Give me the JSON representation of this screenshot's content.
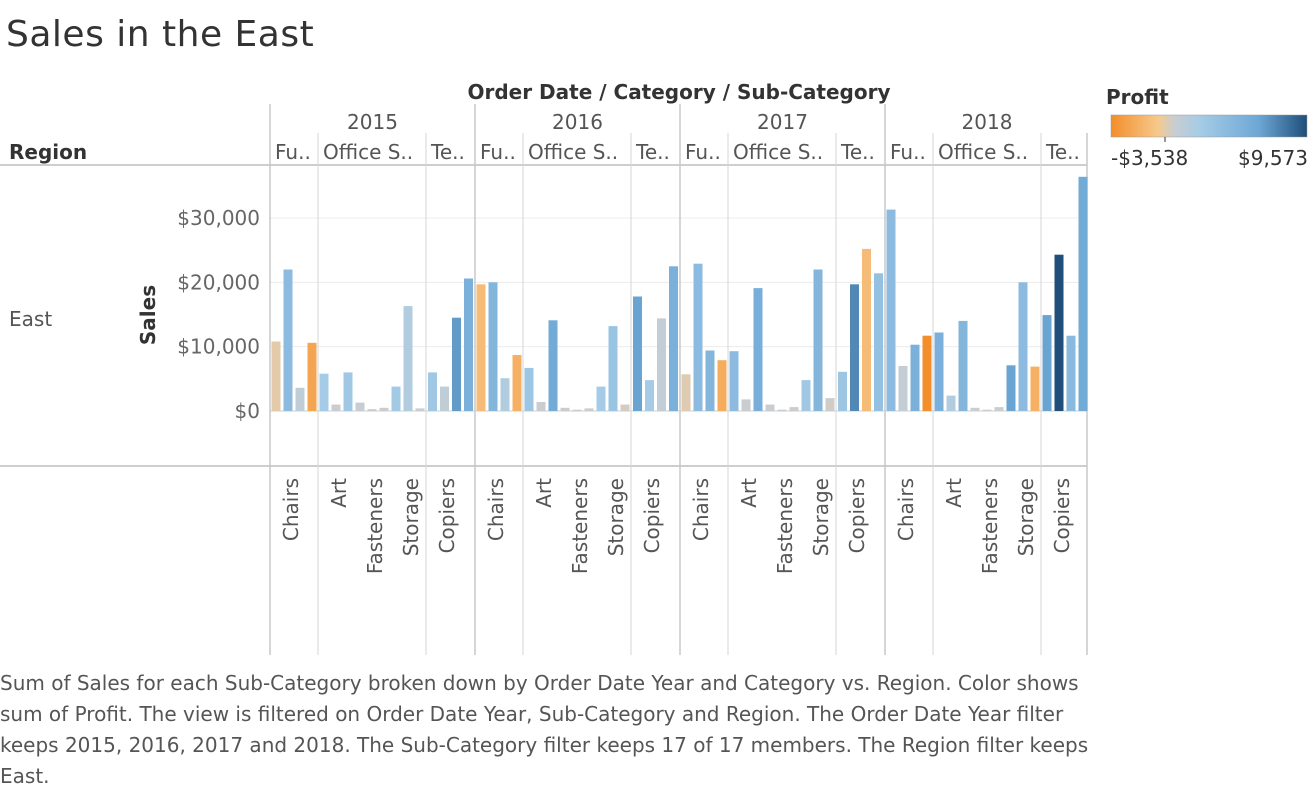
{
  "title": "Sales in the East",
  "header_label": "Order Date / Category / Sub-Category",
  "row_header": "Region",
  "region": "East",
  "colors": {
    "neg": "#f28e2b",
    "neg_light": "#f7c98c",
    "mid": "#c9cdd0",
    "pos_light": "#a6cce6",
    "pos_mid": "#6ea8d6",
    "pos_dark": "#1f4e7a"
  },
  "legend": {
    "title": "Profit",
    "min_label": "-$3,538",
    "max_label": "$9,573",
    "min": -3538,
    "max": 9573
  },
  "caption": "Sum of Sales for each Sub-Category broken down by Order Date Year and Category vs. Region.  Color shows sum of Profit. The view is filtered on Order Date Year, Sub-Category and Region. The Order Date Year filter keeps 2015, 2016, 2017 and 2018. The Sub-Category filter keeps 17 of 17 members. The Region filter keeps East.",
  "chart_data": {
    "type": "bar",
    "title": "Sales in the East",
    "ylabel": "Sales",
    "ylim": [
      -8000,
      38000
    ],
    "yticks": [
      0,
      10000,
      20000,
      30000
    ],
    "ytick_labels": [
      "$0",
      "$10,000",
      "$20,000",
      "$30,000"
    ],
    "years": [
      "2015",
      "2016",
      "2017",
      "2018"
    ],
    "category_labels": [
      "Fu..",
      "Office S..",
      "Te.."
    ],
    "subcategory_axis_labels": [
      [
        "Chairs"
      ],
      [
        "Art",
        "Fasteners",
        "Storage"
      ],
      [
        "Copiers"
      ]
    ],
    "series": [
      {
        "year": "2015",
        "groups": [
          {
            "bars": [
              {
                "sales": 10800,
                "profit": -500
              },
              {
                "sales": 22000,
                "profit": 3000
              },
              {
                "sales": 3600,
                "profit": 400
              },
              {
                "sales": 10600,
                "profit": -2500
              }
            ]
          },
          {
            "bars": [
              {
                "sales": 5800,
                "profit": 1500
              },
              {
                "sales": 1000,
                "profit": 0
              },
              {
                "sales": 6000,
                "profit": 1800
              },
              {
                "sales": 1300,
                "profit": 100
              },
              {
                "sales": 300,
                "profit": 0
              },
              {
                "sales": 500,
                "profit": 0
              },
              {
                "sales": 3800,
                "profit": 1600
              },
              {
                "sales": 16300,
                "profit": 1000
              },
              {
                "sales": 400,
                "profit": 0
              }
            ]
          },
          {
            "bars": [
              {
                "sales": 6000,
                "profit": 1800
              },
              {
                "sales": 3800,
                "profit": 400
              },
              {
                "sales": 14500,
                "profit": 5500
              },
              {
                "sales": 20600,
                "profit": 4000
              }
            ]
          }
        ]
      },
      {
        "year": "2016",
        "groups": [
          {
            "bars": [
              {
                "sales": 19700,
                "profit": -1500
              },
              {
                "sales": 20000,
                "profit": 3500
              },
              {
                "sales": 5100,
                "profit": 1000
              },
              {
                "sales": 8700,
                "profit": -2000
              }
            ]
          },
          {
            "bars": [
              {
                "sales": 6700,
                "profit": 2000
              },
              {
                "sales": 1400,
                "profit": 0
              },
              {
                "sales": 14100,
                "profit": 4500
              },
              {
                "sales": 500,
                "profit": 0
              },
              {
                "sales": 200,
                "profit": 0
              },
              {
                "sales": 400,
                "profit": 0
              },
              {
                "sales": 3800,
                "profit": 1500
              },
              {
                "sales": 13200,
                "profit": 2200
              },
              {
                "sales": 1000,
                "profit": -200
              }
            ]
          },
          {
            "bars": [
              {
                "sales": 17800,
                "profit": 5000
              },
              {
                "sales": 4800,
                "profit": 1500
              },
              {
                "sales": 14400,
                "profit": 300
              },
              {
                "sales": 22500,
                "profit": 4000
              }
            ]
          }
        ]
      },
      {
        "year": "2017",
        "groups": [
          {
            "bars": [
              {
                "sales": 5700,
                "profit": -400
              },
              {
                "sales": 22900,
                "profit": 3000
              },
              {
                "sales": 9400,
                "profit": 3500
              },
              {
                "sales": 7900,
                "profit": -2200
              }
            ]
          },
          {
            "bars": [
              {
                "sales": 9300,
                "profit": 3000
              },
              {
                "sales": 1800,
                "profit": 0
              },
              {
                "sales": 19100,
                "profit": 4200
              },
              {
                "sales": 1000,
                "profit": 0
              },
              {
                "sales": 200,
                "profit": 0
              },
              {
                "sales": 600,
                "profit": 0
              },
              {
                "sales": 4800,
                "profit": 1800
              },
              {
                "sales": 22000,
                "profit": 3500
              },
              {
                "sales": 2000,
                "profit": -100
              }
            ]
          },
          {
            "bars": [
              {
                "sales": 6100,
                "profit": 2000
              },
              {
                "sales": 19700,
                "profit": 6500
              },
              {
                "sales": 25200,
                "profit": -1500
              },
              {
                "sales": 21400,
                "profit": 2500
              }
            ]
          }
        ]
      },
      {
        "year": "2018",
        "groups": [
          {
            "bars": [
              {
                "sales": 31300,
                "profit": 3000
              },
              {
                "sales": 7000,
                "profit": 300
              },
              {
                "sales": 10300,
                "profit": 4000
              },
              {
                "sales": 11700,
                "profit": -3538
              }
            ]
          },
          {
            "bars": [
              {
                "sales": 12200,
                "profit": 4000
              },
              {
                "sales": 2400,
                "profit": 1000
              },
              {
                "sales": 14000,
                "profit": 3500
              },
              {
                "sales": 500,
                "profit": 0
              },
              {
                "sales": 200,
                "profit": 0
              },
              {
                "sales": 600,
                "profit": 0
              },
              {
                "sales": 7100,
                "profit": 5000
              },
              {
                "sales": 20000,
                "profit": 3000
              },
              {
                "sales": 6900,
                "profit": -2000
              }
            ]
          },
          {
            "bars": [
              {
                "sales": 14900,
                "profit": 5000
              },
              {
                "sales": 24300,
                "profit": 9573
              },
              {
                "sales": 11700,
                "profit": 3200
              },
              {
                "sales": 36400,
                "profit": 4500
              }
            ]
          }
        ]
      }
    ]
  }
}
